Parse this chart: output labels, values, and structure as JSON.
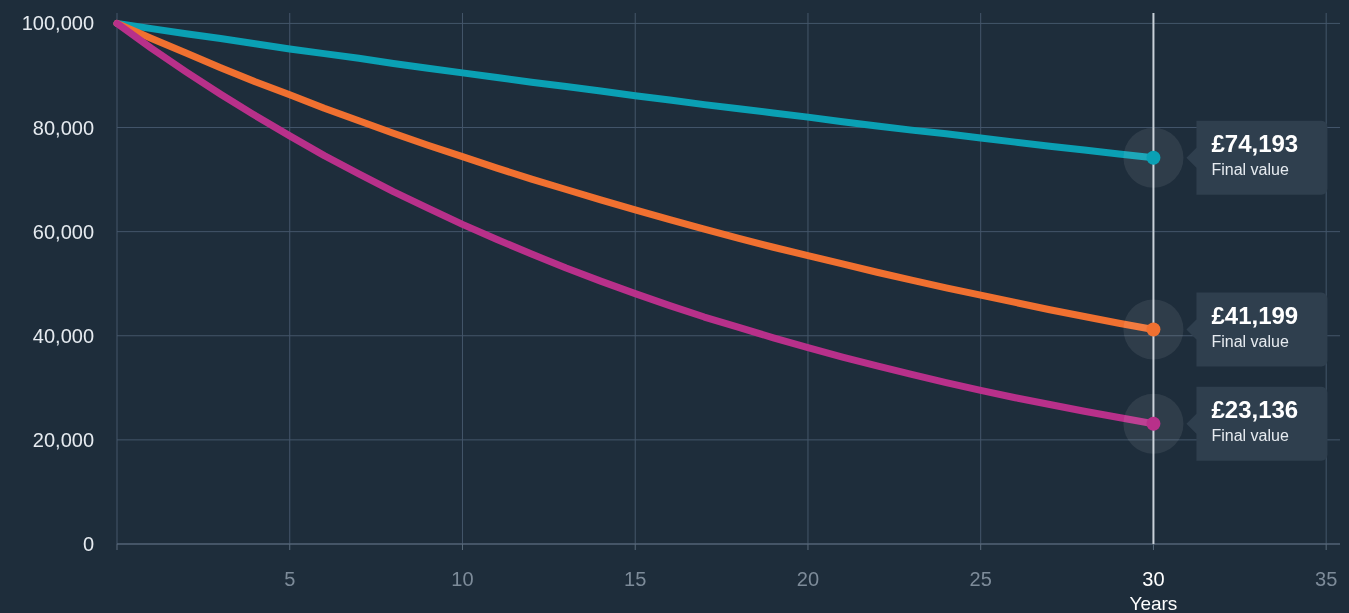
{
  "chart_data": {
    "type": "line",
    "xlabel": "Years",
    "x": [
      0,
      1,
      2,
      3,
      4,
      5,
      6,
      7,
      8,
      9,
      10,
      11,
      12,
      13,
      14,
      15,
      16,
      17,
      18,
      19,
      20,
      21,
      22,
      23,
      24,
      25,
      26,
      27,
      28,
      29,
      30
    ],
    "series": [
      {
        "color": "#0aa0b4",
        "values": [
          100000,
          99000,
          98000,
          97100,
          96100,
          95100,
          94200,
          93300,
          92300,
          91400,
          90500,
          89600,
          88700,
          87900,
          87000,
          86100,
          85300,
          84400,
          83600,
          82800,
          82000,
          81100,
          80300,
          79500,
          78800,
          78000,
          77200,
          76400,
          75700,
          74900,
          74200
        ]
      },
      {
        "color": "#f07030",
        "values": [
          100000,
          97100,
          94300,
          91500,
          88800,
          86300,
          83700,
          81300,
          78900,
          76600,
          74400,
          72200,
          70100,
          68100,
          66100,
          64200,
          62300,
          60500,
          58700,
          57000,
          55400,
          53800,
          52200,
          50700,
          49200,
          47800,
          46400,
          45000,
          43700,
          42400,
          41200
        ]
      },
      {
        "color": "#b8308a",
        "values": [
          100000,
          95200,
          90700,
          86400,
          82300,
          78400,
          74600,
          71100,
          67700,
          64500,
          61400,
          58500,
          55700,
          53000,
          50500,
          48100,
          45800,
          43600,
          41600,
          39600,
          37700,
          35900,
          34200,
          32600,
          31000,
          29500,
          28100,
          26800,
          25500,
          24300,
          23100
        ]
      }
    ],
    "xlim": [
      0,
      35.4
    ],
    "xticks": [
      {
        "value": 0,
        "label": null
      },
      5,
      10,
      15,
      20,
      25,
      30,
      35
    ],
    "ylim": [
      0,
      102000
    ],
    "yticks": [
      {
        "value": 0,
        "label": "0"
      },
      {
        "value": 20000,
        "label": "20,000"
      },
      {
        "value": 40000,
        "label": "40,000"
      },
      {
        "value": 60000,
        "label": "60,000"
      },
      {
        "value": 80000,
        "label": "80,000"
      },
      {
        "value": 100000,
        "label": "100,000"
      }
    ],
    "grid": true,
    "marker": "none",
    "line_style": "solid",
    "ref_lines": [
      {
        "axis": "x",
        "value": 30,
        "label": null,
        "color": "#c8d0d8"
      }
    ],
    "annotations": [
      "£74,193",
      "Final value",
      "£41,199",
      "Final value",
      "£23,136",
      "Final value"
    ]
  }
}
